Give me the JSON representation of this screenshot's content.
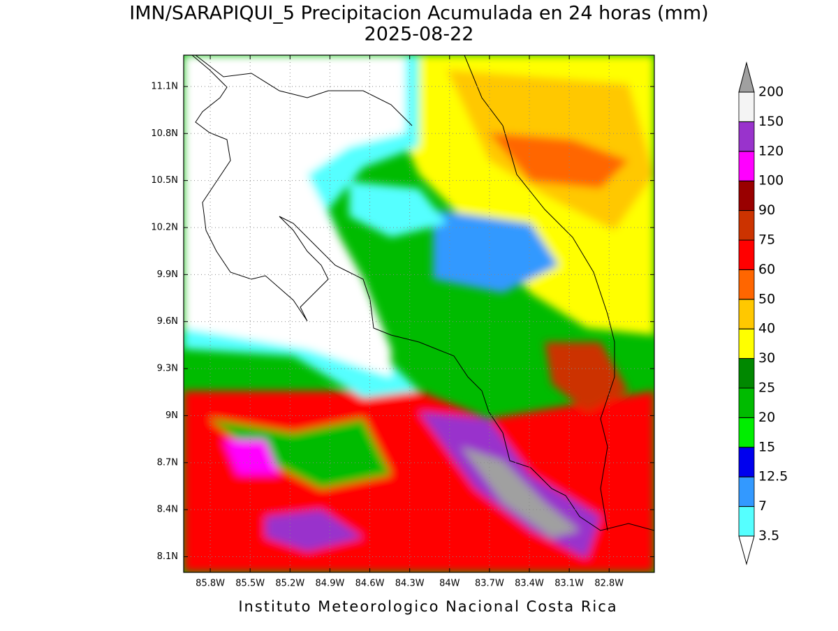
{
  "map_data": {
    "title": "IMN/SARAPIQUI_5 Precipitacion Acumulada en 24 horas (mm)",
    "subtitle": "2025-08-22",
    "footer": "Instituto Meteorologico Nacional Costa Rica",
    "xlim": [
      -86.0,
      -82.46
    ],
    "ylim": [
      8.0,
      11.3
    ],
    "xticks": [
      {
        "value": -85.8,
        "label": "85.8W"
      },
      {
        "value": -85.5,
        "label": "85.5W"
      },
      {
        "value": -85.2,
        "label": "85.2W"
      },
      {
        "value": -84.9,
        "label": "84.9W"
      },
      {
        "value": -84.6,
        "label": "84.6W"
      },
      {
        "value": -84.3,
        "label": "84.3W"
      },
      {
        "value": -84.0,
        "label": "84W"
      },
      {
        "value": -83.7,
        "label": "83.7W"
      },
      {
        "value": -83.4,
        "label": "83.4W"
      },
      {
        "value": -83.1,
        "label": "83.1W"
      },
      {
        "value": -82.8,
        "label": "82.8W"
      }
    ],
    "yticks": [
      {
        "value": 11.1,
        "label": "11.1N"
      },
      {
        "value": 10.8,
        "label": "10.8N"
      },
      {
        "value": 10.5,
        "label": "10.5N"
      },
      {
        "value": 10.2,
        "label": "10.2N"
      },
      {
        "value": 9.9,
        "label": "9.9N"
      },
      {
        "value": 9.6,
        "label": "9.6N"
      },
      {
        "value": 9.3,
        "label": "9.3N"
      },
      {
        "value": 9.0,
        "label": "9N"
      },
      {
        "value": 8.7,
        "label": "8.7N"
      },
      {
        "value": 8.4,
        "label": "8.4N"
      },
      {
        "value": 8.1,
        "label": "8.1N"
      }
    ],
    "grid": true,
    "colorbar": {
      "levels": [
        3.5,
        7,
        12.5,
        15,
        20,
        25,
        30,
        40,
        50,
        60,
        75,
        90,
        100,
        120,
        150,
        200
      ],
      "colors": [
        "#55ffff",
        "#3399ff",
        "#0000ee",
        "#00ee00",
        "#00bb00",
        "#008800",
        "#ffff00",
        "#ffc800",
        "#ff6600",
        "#ff0000",
        "#cc3300",
        "#990000",
        "#ff00ff",
        "#9933cc",
        "#f4f4f4"
      ],
      "under_color": "#ffffff",
      "over_color": "#a0a0a0"
    }
  }
}
